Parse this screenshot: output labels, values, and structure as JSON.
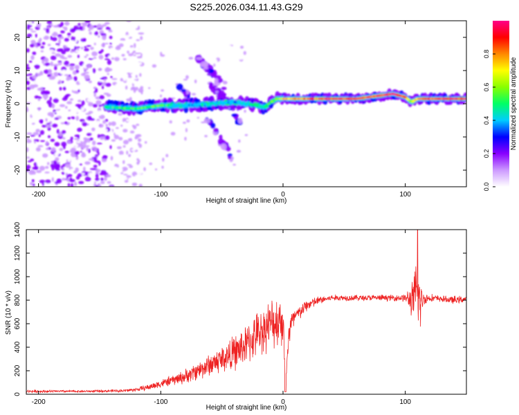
{
  "title": "S225.2026.034.11.43.G29",
  "chart_data": [
    {
      "type": "heatmap",
      "xlabel": "Height of straight line (km)",
      "ylabel": "Frequency (Hz)",
      "xlim": [
        -210,
        150
      ],
      "ylim": [
        -25,
        25
      ],
      "xticks": [
        -200,
        -100,
        0,
        100
      ],
      "xtick_labels": [
        "-200",
        "-100",
        "0",
        "100"
      ],
      "yticks": [
        -20,
        -10,
        0,
        10,
        20
      ],
      "ytick_labels": [
        "-20",
        "-10",
        "0",
        "10",
        "20"
      ],
      "colorbar": {
        "label": "Normalized spectral amplitude",
        "range": [
          0,
          1
        ],
        "ticks": [
          0.0,
          0.2,
          0.4,
          0.6,
          0.8
        ],
        "tick_labels": [
          "0.0",
          "0.2",
          "0.4",
          "0.6",
          "0.8"
        ],
        "colormap": [
          "#ffffff",
          "#cc99ff",
          "#8800ff",
          "#0000ff",
          "#00ccff",
          "#00ff66",
          "#88ff00",
          "#ffff00",
          "#ff8800",
          "#ff0000",
          "#ff0088"
        ]
      },
      "ridge": {
        "x": [
          -145,
          -120,
          -100,
          -80,
          -60,
          -40,
          -30,
          -22,
          -15,
          -10,
          -5,
          0,
          10,
          20,
          40,
          60,
          80,
          90,
          100,
          105,
          110,
          130,
          150
        ],
        "freq": [
          -1.0,
          -1.5,
          -0.5,
          -0.5,
          0.0,
          0.5,
          0.0,
          -0.5,
          -1.0,
          0.5,
          1.5,
          1.5,
          1.5,
          1.5,
          1.5,
          1.5,
          2.5,
          3.0,
          2.0,
          0.5,
          1.5,
          1.5,
          1.5
        ],
        "amplitude": [
          0.5,
          0.55,
          0.55,
          0.4,
          0.45,
          0.4,
          0.45,
          0.5,
          0.5,
          0.55,
          0.6,
          0.7,
          0.75,
          0.8,
          0.85,
          0.85,
          0.85,
          0.9,
          0.85,
          0.6,
          0.8,
          0.85,
          0.85
        ]
      },
      "diagonal_branches": [
        {
          "x": [
            -85,
            -65,
            -45,
            -40
          ],
          "freq": [
            5.0,
            -3.0,
            -14.0,
            -19.5
          ]
        },
        {
          "x": [
            -60,
            -45,
            -35
          ],
          "freq": [
            6.0,
            0.5,
            -6.0
          ]
        },
        {
          "x": [
            -70,
            -55,
            -48
          ],
          "freq": [
            14.0,
            8.0,
            4.0
          ]
        }
      ],
      "noise_region_x": [
        -210,
        -140
      ]
    },
    {
      "type": "line",
      "xlabel": "Height of straight line (km)",
      "ylabel": "SNR (10 * v/v)",
      "xlim": [
        -210,
        150
      ],
      "ylim": [
        0,
        1400
      ],
      "xticks": [
        -200,
        -100,
        0,
        100
      ],
      "xtick_labels": [
        "-200",
        "-100",
        "0",
        "100"
      ],
      "yticks": [
        0,
        200,
        400,
        600,
        800,
        1000,
        1200,
        1400
      ],
      "ytick_labels": [
        "0",
        "200",
        "400",
        "600",
        "800",
        "1000",
        "1200",
        "1400"
      ],
      "series": [
        {
          "name": "SNR",
          "color": "#ee2222",
          "x": [
            -210,
            -160,
            -130,
            -120,
            -110,
            -100,
            -90,
            -80,
            -70,
            -60,
            -50,
            -40,
            -30,
            -20,
            -10,
            -5,
            0,
            2,
            5,
            10,
            20,
            30,
            40,
            60,
            80,
            90,
            100,
            105,
            108,
            110,
            112,
            115,
            120,
            130,
            140,
            150
          ],
          "mean": [
            25,
            25,
            30,
            40,
            60,
            90,
            120,
            150,
            200,
            250,
            300,
            350,
            420,
            520,
            600,
            620,
            650,
            40,
            560,
            660,
            760,
            800,
            820,
            820,
            820,
            820,
            820,
            800,
            820,
            820,
            780,
            810,
            820,
            810,
            800,
            810
          ],
          "spread": [
            15,
            12,
            15,
            20,
            30,
            40,
            50,
            70,
            90,
            110,
            140,
            170,
            200,
            220,
            240,
            260,
            280,
            20,
            200,
            80,
            60,
            40,
            30,
            30,
            30,
            30,
            40,
            150,
            300,
            420,
            300,
            60,
            40,
            30,
            40,
            30
          ]
        }
      ],
      "peak_max": 1400,
      "dip_min": 20
    }
  ]
}
